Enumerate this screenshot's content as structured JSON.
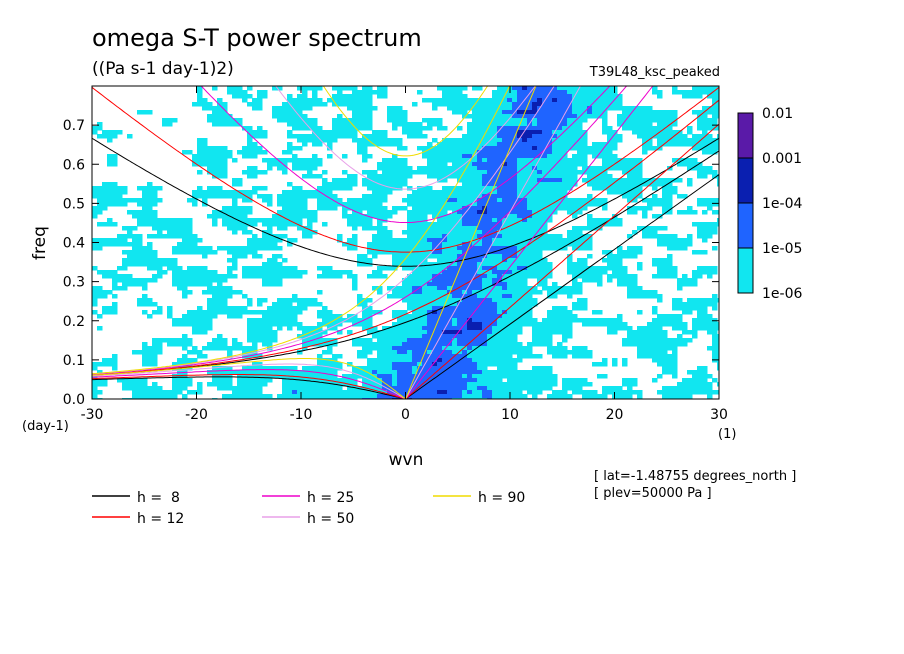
{
  "chart_data": {
    "type": "heatmap",
    "title": "omega S-T power spectrum",
    "subtitle": "((Pa s-1 day-1)2)",
    "dataset_label": "T39L48_ksc_peaked",
    "xlabel": "wvn",
    "ylabel": "freq",
    "x_unit": "(1)",
    "y_unit": "(day-1)",
    "xlim": [
      -30,
      30
    ],
    "ylim": [
      0,
      0.8
    ],
    "x_ticks": [
      "-30",
      "-20",
      "-10",
      "0",
      "10",
      "20",
      "30"
    ],
    "x_tick_values": [
      -30,
      -20,
      -10,
      0,
      10,
      20,
      30
    ],
    "y_ticks": [
      "0.0",
      "0.1",
      "0.2",
      "0.3",
      "0.4",
      "0.5",
      "0.6",
      "0.7"
    ],
    "y_tick_values": [
      0,
      0.1,
      0.2,
      0.3,
      0.4,
      0.5,
      0.6,
      0.7
    ],
    "color_levels": {
      "labels": [
        "0.01",
        "0.001",
        "1e-04",
        "1e-05",
        "1e-06"
      ],
      "colors": [
        "#5a1aa8",
        "#0a1fb0",
        "#1f64ff",
        "#11e6f0"
      ]
    },
    "dispersion_curves": [
      {
        "name": "h =  8",
        "h": 8,
        "color": "#000000"
      },
      {
        "name": "h = 12",
        "h": 12,
        "color": "#ff0000"
      },
      {
        "name": "h = 25",
        "h": 25,
        "color": "#ee00cc"
      },
      {
        "name": "h = 50",
        "h": 50,
        "color": "#e8a0e8"
      },
      {
        "name": "h = 90",
        "h": 90,
        "color": "#f0dc00"
      }
    ],
    "annotations": [
      "[ lat=-1.48755 degrees_north ]",
      "[ plev=50000 Pa ]"
    ],
    "legend_placement": "bottom"
  }
}
